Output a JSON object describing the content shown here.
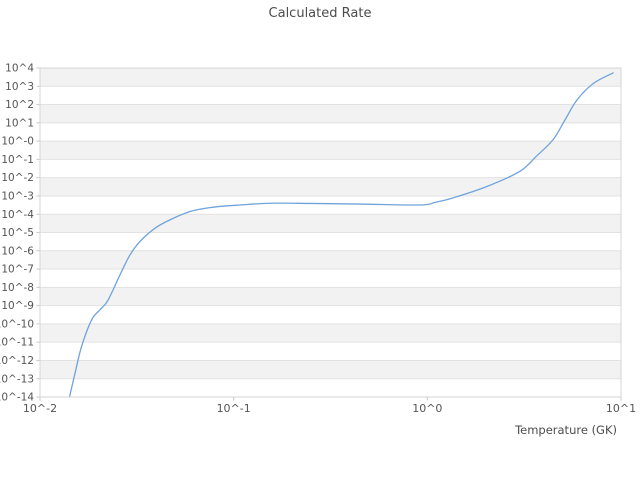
{
  "chart_data": {
    "type": "line",
    "title": "Calculated Rate",
    "xlabel": "Temperature (GK)",
    "ylabel": "",
    "x_scale": "log",
    "y_scale": "log",
    "xlim": [
      0.01,
      10
    ],
    "ylim": [
      1e-14,
      10000.0
    ],
    "x_tick_labels": [
      "10^-2",
      "10^-1",
      "10^0",
      "10^1"
    ],
    "x_tick_exponents": [
      -2,
      -1,
      0,
      1
    ],
    "y_tick_labels": [
      "10^4",
      "10^3",
      "10^2",
      "10^1",
      "10^-0",
      "10^-1",
      "10^-2",
      "10^-3",
      "10^-4",
      "10^-5",
      "10^-6",
      "10^-7",
      "10^-8",
      "10^-9",
      "10^-10",
      "10^-11",
      "10^-12",
      "10^-13",
      "10^-14"
    ],
    "y_tick_exponents": [
      4,
      3,
      2,
      1,
      0,
      -1,
      -2,
      -3,
      -4,
      -5,
      -6,
      -7,
      -8,
      -9,
      -10,
      -11,
      -12,
      -13,
      -14
    ],
    "grid": "horizontal-bands",
    "legend": "none",
    "series": [
      {
        "name": "calculated-rate",
        "points": [
          [
            0.0142,
            1e-14
          ],
          [
            0.0152,
            2.2e-13
          ],
          [
            0.0164,
            5.9e-12
          ],
          [
            0.0185,
            1.7e-10
          ],
          [
            0.0204,
            5.9e-10
          ],
          [
            0.0224,
            1.9e-09
          ],
          [
            0.0259,
            4.9e-08
          ],
          [
            0.0292,
            6.1e-07
          ],
          [
            0.0328,
            3.2e-06
          ],
          [
            0.0392,
            1.7e-05
          ],
          [
            0.0469,
            4.9e-05
          ],
          [
            0.0595,
            0.00014
          ],
          [
            0.0755,
            0.00023
          ],
          [
            0.09,
            0.00028
          ],
          [
            0.108,
            0.00032
          ],
          [
            0.154,
            0.0004
          ],
          [
            0.25,
            0.00039
          ],
          [
            0.45,
            0.00036
          ],
          [
            0.92,
            0.00032
          ],
          [
            1.1,
            0.00045
          ],
          [
            1.36,
            0.00079
          ],
          [
            2.03,
            0.0033
          ],
          [
            3.0,
            0.022
          ],
          [
            3.66,
            0.15
          ],
          [
            4.46,
            1.2
          ],
          [
            5.14,
            14.5
          ],
          [
            5.93,
            180.0
          ],
          [
            7.18,
            1400.0
          ],
          [
            9.1,
            5400.0
          ]
        ]
      }
    ],
    "colors": {
      "line": "#6fa3dc",
      "band_gray": "#f2f2f2",
      "band_white": "#ffffff",
      "gridline": "#e2e2e2",
      "border": "#d4d4d4",
      "tick_mark": "#c8c8c8",
      "title_text": "#4c4c4c",
      "tick_text": "#555555",
      "background": "#ffffff"
    }
  }
}
